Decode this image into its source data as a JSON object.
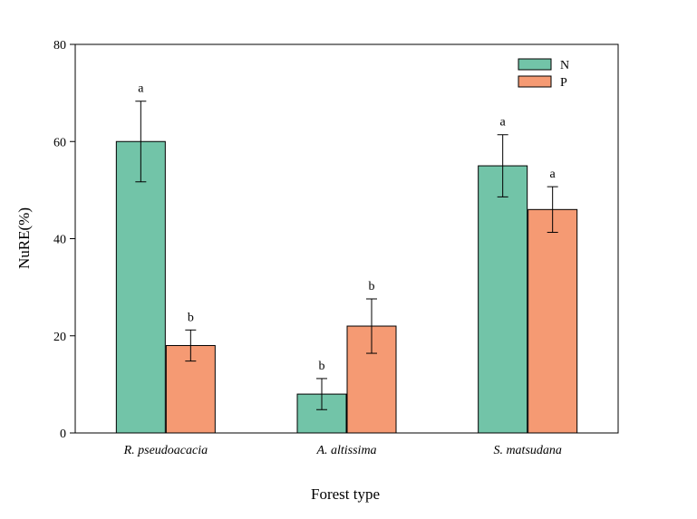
{
  "chart_data": {
    "type": "bar",
    "xlabel": "Forest type",
    "ylabel": "NuRE(%)",
    "ylim": [
      0,
      80
    ],
    "yticks": [
      0,
      20,
      40,
      60,
      80
    ],
    "categories": [
      "R. pseudoacacia",
      "A. altissima",
      "S. matsudana"
    ],
    "series": [
      {
        "name": "N",
        "color": "#72c4a8",
        "values": [
          60,
          8,
          55
        ],
        "errors": [
          8.3,
          3.2,
          6.4
        ],
        "significance": [
          "a",
          "b",
          "a"
        ]
      },
      {
        "name": "P",
        "color": "#f59a73",
        "values": [
          18,
          22,
          46
        ],
        "errors": [
          3.2,
          5.6,
          4.7
        ],
        "significance": [
          "b",
          "b",
          "a"
        ]
      }
    ],
    "legend": {
      "position": "top-right"
    },
    "grid": false
  }
}
